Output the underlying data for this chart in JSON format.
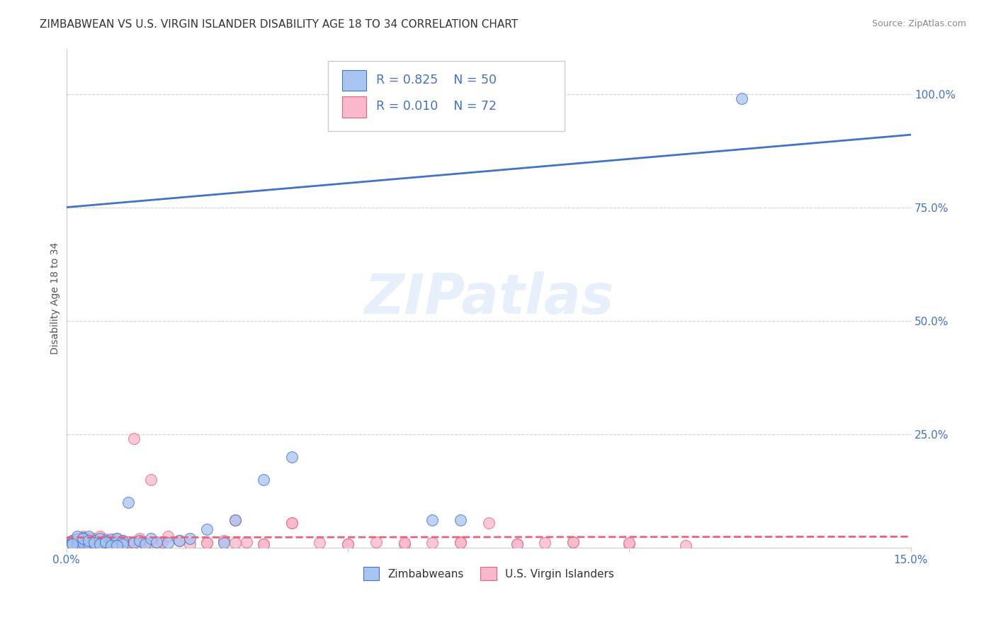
{
  "title": "ZIMBABWEAN VS U.S. VIRGIN ISLANDER DISABILITY AGE 18 TO 34 CORRELATION CHART",
  "source": "Source: ZipAtlas.com",
  "ylabel": "Disability Age 18 to 34",
  "xlim": [
    0.0,
    0.15
  ],
  "ylim": [
    0.0,
    1.1
  ],
  "yticks": [
    0.25,
    0.5,
    0.75,
    1.0
  ],
  "ytick_labels": [
    "25.0%",
    "50.0%",
    "75.0%",
    "100.0%"
  ],
  "xticks": [
    0.0,
    0.05,
    0.1,
    0.15
  ],
  "xtick_labels": [
    "0.0%",
    "",
    "",
    "15.0%"
  ],
  "watermark": "ZIPatlas",
  "color_zim": "#a8c4f0",
  "color_vi": "#f9b8cb",
  "line_color_zim": "#4472c4",
  "line_color_vi": "#e8637a",
  "background_color": "#ffffff",
  "grid_color": "#d0d0d0",
  "zim_line_x": [
    0.0,
    0.15
  ],
  "zim_line_y": [
    0.75,
    0.91
  ],
  "vi_line_x": [
    0.0,
    0.15
  ],
  "vi_line_y": [
    0.022,
    0.024
  ],
  "zim_scatter_x": [
    0.001,
    0.001,
    0.002,
    0.002,
    0.002,
    0.003,
    0.003,
    0.003,
    0.004,
    0.004,
    0.004,
    0.005,
    0.005,
    0.005,
    0.006,
    0.006,
    0.007,
    0.007,
    0.008,
    0.008,
    0.008,
    0.009,
    0.01,
    0.01,
    0.011,
    0.012,
    0.013,
    0.014,
    0.015,
    0.016,
    0.018,
    0.02,
    0.022,
    0.025,
    0.028,
    0.03,
    0.035,
    0.04,
    0.065,
    0.07,
    0.002,
    0.003,
    0.004,
    0.005,
    0.006,
    0.007,
    0.008,
    0.009,
    0.001,
    0.12
  ],
  "zim_scatter_y": [
    0.015,
    0.01,
    0.012,
    0.008,
    0.018,
    0.015,
    0.01,
    0.022,
    0.012,
    0.008,
    0.025,
    0.01,
    0.015,
    0.008,
    0.012,
    0.02,
    0.015,
    0.01,
    0.018,
    0.012,
    0.008,
    0.02,
    0.015,
    0.008,
    0.1,
    0.01,
    0.015,
    0.008,
    0.02,
    0.012,
    0.01,
    0.015,
    0.02,
    0.04,
    0.01,
    0.06,
    0.15,
    0.2,
    0.06,
    0.06,
    0.025,
    0.02,
    0.015,
    0.01,
    0.008,
    0.012,
    0.005,
    0.005,
    0.008,
    0.99
  ],
  "vi_scatter_x": [
    0.001,
    0.001,
    0.002,
    0.002,
    0.003,
    0.003,
    0.003,
    0.004,
    0.004,
    0.005,
    0.005,
    0.005,
    0.006,
    0.006,
    0.007,
    0.007,
    0.008,
    0.008,
    0.009,
    0.009,
    0.01,
    0.01,
    0.011,
    0.012,
    0.013,
    0.014,
    0.015,
    0.016,
    0.017,
    0.018,
    0.02,
    0.022,
    0.025,
    0.028,
    0.03,
    0.032,
    0.035,
    0.04,
    0.045,
    0.05,
    0.055,
    0.06,
    0.065,
    0.07,
    0.075,
    0.08,
    0.085,
    0.09,
    0.1,
    0.11,
    0.025,
    0.03,
    0.035,
    0.04,
    0.05,
    0.06,
    0.07,
    0.08,
    0.09,
    0.1,
    0.002,
    0.003,
    0.004,
    0.005,
    0.006,
    0.007,
    0.008,
    0.009,
    0.01,
    0.011,
    0.012,
    0.013
  ],
  "vi_scatter_y": [
    0.015,
    0.01,
    0.012,
    0.02,
    0.01,
    0.015,
    0.025,
    0.008,
    0.018,
    0.012,
    0.02,
    0.008,
    0.015,
    0.025,
    0.01,
    0.018,
    0.015,
    0.008,
    0.012,
    0.02,
    0.01,
    0.015,
    0.008,
    0.012,
    0.02,
    0.01,
    0.15,
    0.008,
    0.012,
    0.025,
    0.015,
    0.008,
    0.01,
    0.015,
    0.01,
    0.012,
    0.008,
    0.055,
    0.01,
    0.008,
    0.012,
    0.008,
    0.01,
    0.012,
    0.055,
    0.008,
    0.01,
    0.012,
    0.008,
    0.005,
    0.01,
    0.06,
    0.008,
    0.055,
    0.008,
    0.01,
    0.01,
    0.008,
    0.012,
    0.01,
    0.008,
    0.012,
    0.02,
    0.01,
    0.008,
    0.012,
    0.015,
    0.01,
    0.008,
    0.012,
    0.24,
    0.008
  ]
}
